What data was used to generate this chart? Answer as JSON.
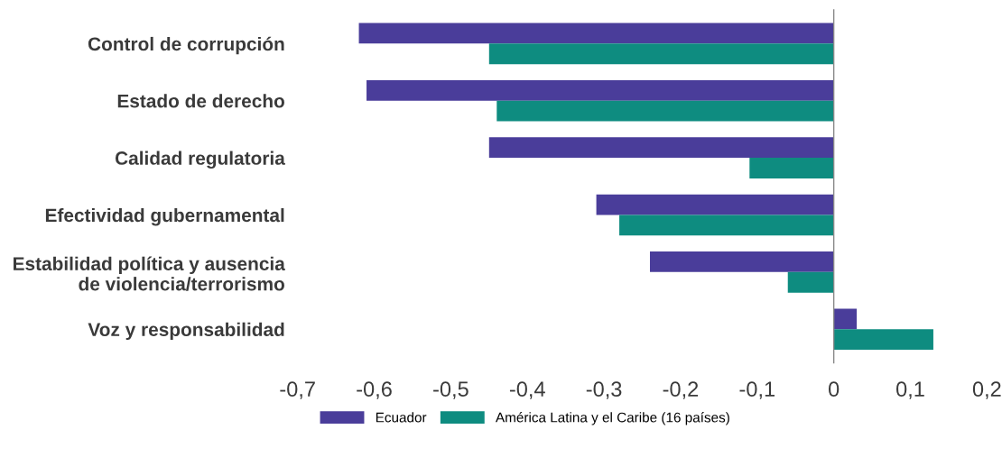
{
  "chart_data": {
    "type": "bar",
    "orientation": "horizontal",
    "categories": [
      "Control de corrupción",
      "Estado de derecho",
      "Calidad regulatoria",
      "Efectividad gubernamental",
      "Estabilidad política y ausencia\nde violencia/terrorismo",
      "Voz y responsabilidad"
    ],
    "series": [
      {
        "name": "Ecuador",
        "color": "#4a3d9a",
        "values": [
          -0.62,
          -0.61,
          -0.45,
          -0.31,
          -0.24,
          0.03
        ]
      },
      {
        "name": "América Latina y el Caribe (16 países)",
        "color": "#0e8c80",
        "values": [
          -0.45,
          -0.44,
          -0.11,
          -0.28,
          -0.06,
          0.13
        ]
      }
    ],
    "xlim": [
      -0.7,
      0.2
    ],
    "xticks": [
      {
        "value": -0.7,
        "label": "-0,7"
      },
      {
        "value": -0.6,
        "label": "-0,6"
      },
      {
        "value": -0.5,
        "label": "-0,5"
      },
      {
        "value": -0.4,
        "label": "-0,4"
      },
      {
        "value": -0.3,
        "label": "-0,3"
      },
      {
        "value": -0.2,
        "label": "-0,2"
      },
      {
        "value": -0.1,
        "label": "-0,1"
      },
      {
        "value": 0,
        "label": "0"
      },
      {
        "value": 0.1,
        "label": "0,1"
      },
      {
        "value": 0.2,
        "label": "0,2"
      }
    ],
    "ref_lines": [
      {
        "axis": "x",
        "value": 0,
        "color": "#888888"
      }
    ],
    "grid": false,
    "legend": "bottom"
  }
}
